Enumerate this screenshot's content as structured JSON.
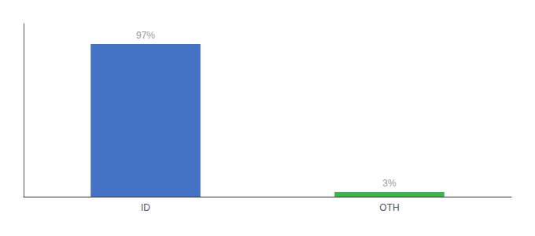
{
  "chart_data": {
    "type": "bar",
    "categories": [
      "ID",
      "OTH"
    ],
    "values": [
      97,
      3
    ],
    "value_labels": [
      "97%",
      "3%"
    ],
    "colors": [
      "#4472c4",
      "#3cb54a"
    ],
    "ylim": [
      0,
      110
    ],
    "data_labels": true,
    "tick_labels": "x",
    "grid": false
  }
}
